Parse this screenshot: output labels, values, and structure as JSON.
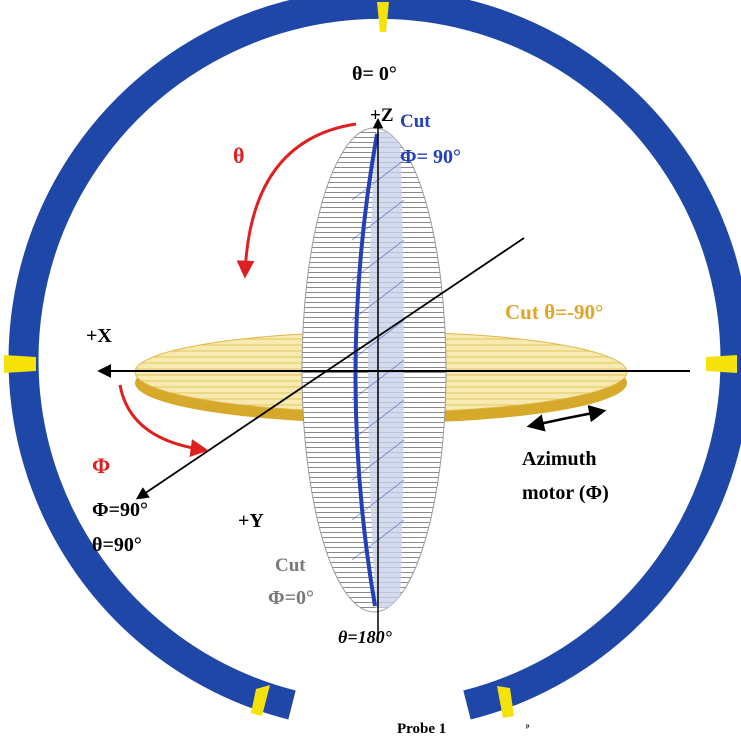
{
  "labels": {
    "theta_top": "θ= 0°",
    "plus_z": "+Z",
    "cut_top": "Cut",
    "phi_90_top": "Φ= 90°",
    "theta_symbol": "θ",
    "plus_x": "+X",
    "cut_theta_90": "Cut  θ=-90°",
    "azimuth": "Azimuth",
    "motor_phi": "motor (Φ)",
    "phi_symbol": "Φ",
    "phi_90_bottom": "Φ=90°",
    "theta_90_bottom": "θ=90°",
    "plus_y": "+Y",
    "cut_bottom": "Cut",
    "phi_0": "Φ=0°",
    "theta_180": "θ=180°",
    "probe": "Probe 1",
    "tick_mark": "ᵖ"
  },
  "colors": {
    "ring": "#1f47a8",
    "probe": "#f4e20a",
    "cut_blue": "#2340b8",
    "cut_orange": "#e0a526",
    "disk_yellow": "#f3df7e",
    "disk_rim": "#d6a92a",
    "arrow_red": "#e02020",
    "hatch_gray": "#8a8a8a",
    "axis_black": "#000000"
  }
}
